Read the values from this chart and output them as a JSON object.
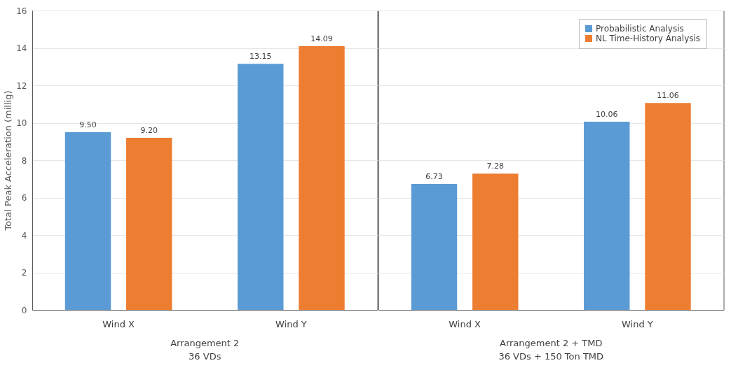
{
  "chart_data": {
    "type": "bar",
    "ylabel": "Total Peak Acceleration (millig)",
    "categories": [
      "Wind X",
      "Wind Y",
      "Wind X",
      "Wind Y"
    ],
    "series": [
      {
        "name": "Probabilistic Analysis",
        "color": "#5b9bd5",
        "values": [
          9.5,
          13.15,
          6.73,
          10.06
        ]
      },
      {
        "name": "NL Time-History Analysis",
        "color": "#ed7d31",
        "values": [
          9.2,
          14.09,
          7.28,
          11.06
        ]
      }
    ],
    "value_labels": [
      [
        "9.50",
        "13.15",
        "6.73",
        "10.06"
      ],
      [
        "9.20",
        "14.09",
        "7.28",
        "11.06"
      ]
    ],
    "annotations": [
      "Arrangement 2\n36 VDs",
      "Arrangement 2 + TMD\n36 VDs + 150 Ton TMD"
    ],
    "ylim": [
      0,
      16
    ],
    "yticks": [
      0,
      2,
      4,
      6,
      8,
      10,
      12,
      14,
      16
    ],
    "grid": "y",
    "legend": "top right"
  }
}
